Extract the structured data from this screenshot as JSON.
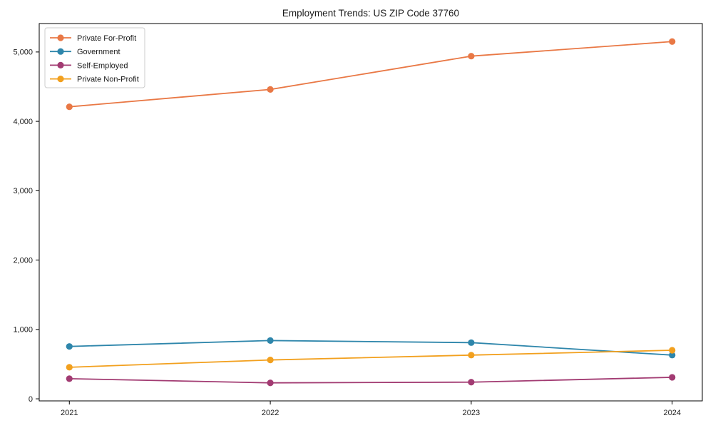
{
  "page": {
    "title": "Employment Trends: US ZIP Code 37760"
  },
  "chart_data": {
    "type": "line",
    "title": "Employment Trends: US ZIP Code 37760",
    "categories": [
      "2021",
      "2022",
      "2023",
      "2024"
    ],
    "series": [
      {
        "name": "Private For-Profit",
        "color": "#e97845",
        "values": [
          4210,
          4460,
          4940,
          5150
        ]
      },
      {
        "name": "Government",
        "color": "#2e86ab",
        "values": [
          755,
          840,
          810,
          630
        ]
      },
      {
        "name": "Self-Employed",
        "color": "#a23b72",
        "values": [
          290,
          230,
          240,
          310
        ]
      },
      {
        "name": "Private Non-Profit",
        "color": "#f2a01e",
        "values": [
          455,
          560,
          630,
          700
        ]
      }
    ],
    "xlabel": "",
    "ylabel": "",
    "ylim": [
      -30,
      5410
    ],
    "y_ticks": [
      0,
      1000,
      2000,
      3000,
      4000,
      5000
    ],
    "y_tick_labels": [
      "0",
      "1,000",
      "2,000",
      "3,000",
      "4,000",
      "5,000"
    ],
    "grid": false,
    "legend_position": "upper left",
    "axis_color": "#000000",
    "text_color": "#1a1a1a",
    "background": "#ffffff"
  }
}
